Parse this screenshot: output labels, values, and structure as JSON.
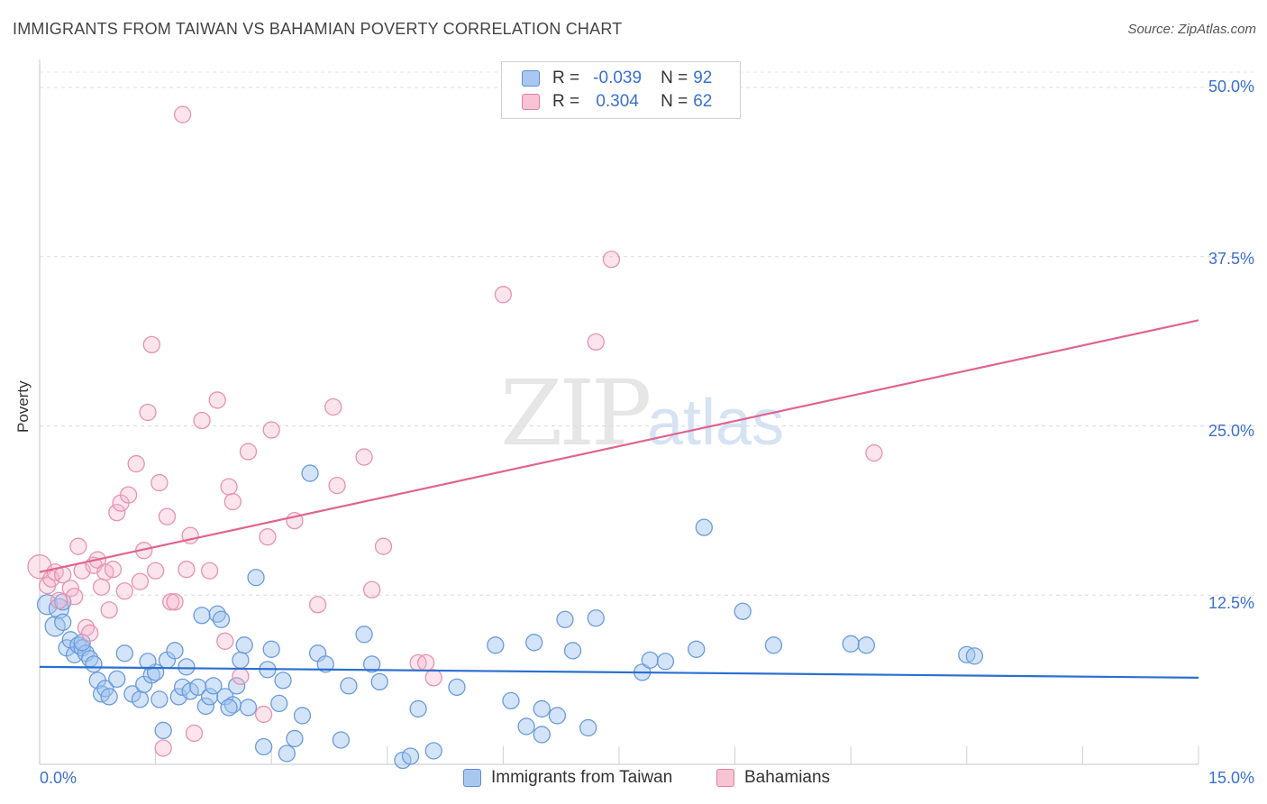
{
  "title": "IMMIGRANTS FROM TAIWAN VS BAHAMIAN POVERTY CORRELATION CHART",
  "source": "Source: ZipAtlas.com",
  "watermark": {
    "zip": "ZIP",
    "atlas": "atlas"
  },
  "legend": {
    "r_label": "R =",
    "n_label": "N =",
    "rows": [
      {
        "r": "-0.039",
        "n": "92",
        "color": "#a9c8f0",
        "border": "#5a8fd8"
      },
      {
        "r": "0.304",
        "n": "62",
        "color": "#f8c4d4",
        "border": "#e07ea0"
      }
    ]
  },
  "bottom_legend": [
    {
      "label": "Immigrants from Taiwan",
      "color": "#a9c8f0",
      "border": "#5a8fd8"
    },
    {
      "label": "Bahamians",
      "color": "#f8c4d4",
      "border": "#e07ea0"
    }
  ],
  "axes": {
    "ylabel": "Poverty",
    "x_min_label": "0.0%",
    "x_max_label": "15.0%",
    "y_ticks": [
      "50.0%",
      "37.5%",
      "25.0%",
      "12.5%"
    ]
  },
  "chart_data": {
    "type": "scatter",
    "xlabel": "",
    "ylabel": "Poverty",
    "xlim": [
      0,
      15
    ],
    "ylim": [
      0,
      50
    ],
    "grid": true,
    "series": [
      {
        "name": "Immigrants from Taiwan",
        "color": "#6fa0e0",
        "trend": {
          "x": [
            0,
            15
          ],
          "y": [
            7.2,
            6.4
          ],
          "color": "#2b6fd0"
        },
        "points": [
          [
            0.1,
            11.8
          ],
          [
            0.2,
            10.2
          ],
          [
            0.25,
            11.5
          ],
          [
            0.3,
            12
          ],
          [
            0.35,
            8.6
          ],
          [
            0.4,
            9.2
          ],
          [
            0.45,
            8.1
          ],
          [
            0.5,
            8.8
          ],
          [
            0.55,
            8.6
          ],
          [
            0.6,
            8.2
          ],
          [
            0.65,
            7.8
          ],
          [
            0.7,
            7.4
          ],
          [
            0.75,
            6.2
          ],
          [
            0.8,
            5.2
          ],
          [
            0.85,
            5.6
          ],
          [
            0.9,
            5
          ],
          [
            1.1,
            8.2
          ],
          [
            1.2,
            5.2
          ],
          [
            1.3,
            4.8
          ],
          [
            1.35,
            5.9
          ],
          [
            1.45,
            6.6
          ],
          [
            1.5,
            6.8
          ],
          [
            1.55,
            4.8
          ],
          [
            1.6,
            2.5
          ],
          [
            1.65,
            7.7
          ],
          [
            1.75,
            8.4
          ],
          [
            1.8,
            5
          ],
          [
            1.85,
            5.7
          ],
          [
            1.9,
            7.2
          ],
          [
            1.95,
            5.4
          ],
          [
            2.05,
            5.7
          ],
          [
            2.1,
            11
          ],
          [
            2.15,
            4.3
          ],
          [
            2.2,
            5
          ],
          [
            2.25,
            5.8
          ],
          [
            2.3,
            11.1
          ],
          [
            2.35,
            10.7
          ],
          [
            2.4,
            5
          ],
          [
            2.5,
            4.4
          ],
          [
            2.55,
            5.8
          ],
          [
            2.6,
            7.7
          ],
          [
            2.65,
            8.8
          ],
          [
            2.7,
            4.2
          ],
          [
            2.8,
            13.8
          ],
          [
            2.9,
            1.3
          ],
          [
            2.95,
            7
          ],
          [
            3.0,
            8.5
          ],
          [
            3.1,
            4.5
          ],
          [
            3.15,
            6.2
          ],
          [
            3.2,
            0.8
          ],
          [
            3.3,
            1.9
          ],
          [
            3.4,
            3.6
          ],
          [
            3.5,
            21.5
          ],
          [
            3.6,
            8.2
          ],
          [
            3.7,
            7.4
          ],
          [
            3.9,
            1.8
          ],
          [
            4.0,
            5.8
          ],
          [
            4.2,
            9.6
          ],
          [
            4.3,
            7.4
          ],
          [
            4.4,
            6.1
          ],
          [
            4.7,
            0.3
          ],
          [
            4.8,
            0.6
          ],
          [
            4.9,
            4.1
          ],
          [
            5.1,
            1.0
          ],
          [
            5.4,
            5.7
          ],
          [
            5.9,
            8.8
          ],
          [
            6.1,
            4.7
          ],
          [
            6.3,
            2.8
          ],
          [
            6.4,
            9.0
          ],
          [
            6.5,
            2.2
          ],
          [
            6.5,
            4.1
          ],
          [
            6.7,
            3.6
          ],
          [
            6.8,
            10.7
          ],
          [
            6.9,
            8.4
          ],
          [
            7.1,
            2.7
          ],
          [
            7.2,
            10.8
          ],
          [
            7.8,
            6.8
          ],
          [
            7.9,
            7.7
          ],
          [
            8.1,
            7.6
          ],
          [
            8.5,
            8.5
          ],
          [
            8.6,
            17.5
          ],
          [
            9.1,
            11.3
          ],
          [
            9.5,
            8.8
          ],
          [
            10.5,
            8.9
          ],
          [
            10.7,
            8.8
          ],
          [
            12.0,
            8.1
          ],
          [
            12.1,
            8.0
          ],
          [
            0.3,
            10.5
          ],
          [
            0.55,
            9.0
          ],
          [
            1.0,
            6.3
          ],
          [
            1.4,
            7.6
          ],
          [
            2.45,
            4.2
          ]
        ]
      },
      {
        "name": "Bahamians",
        "color": "#f4a8c0",
        "trend": {
          "x": [
            0,
            15
          ],
          "y": [
            14.2,
            32.8
          ],
          "color": "#e0648f"
        },
        "points": [
          [
            0.0,
            14.6
          ],
          [
            0.1,
            13.2
          ],
          [
            0.15,
            13.7
          ],
          [
            0.2,
            14.2
          ],
          [
            0.25,
            12.1
          ],
          [
            0.3,
            14.0
          ],
          [
            0.4,
            13.0
          ],
          [
            0.45,
            12.4
          ],
          [
            0.5,
            16.1
          ],
          [
            0.55,
            14.3
          ],
          [
            0.6,
            10.1
          ],
          [
            0.65,
            9.7
          ],
          [
            0.7,
            14.7
          ],
          [
            0.75,
            15.1
          ],
          [
            0.8,
            13.1
          ],
          [
            0.85,
            14.2
          ],
          [
            0.9,
            11.4
          ],
          [
            0.95,
            14.4
          ],
          [
            1.0,
            18.6
          ],
          [
            1.05,
            19.3
          ],
          [
            1.1,
            12.8
          ],
          [
            1.15,
            19.9
          ],
          [
            1.25,
            22.2
          ],
          [
            1.3,
            13.5
          ],
          [
            1.35,
            15.8
          ],
          [
            1.4,
            26.0
          ],
          [
            1.45,
            31.0
          ],
          [
            1.5,
            14.3
          ],
          [
            1.55,
            20.8
          ],
          [
            1.6,
            1.2
          ],
          [
            1.65,
            18.3
          ],
          [
            1.7,
            12.0
          ],
          [
            1.75,
            12.0
          ],
          [
            1.85,
            48.0
          ],
          [
            1.9,
            14.4
          ],
          [
            1.95,
            16.9
          ],
          [
            2.0,
            2.3
          ],
          [
            2.1,
            25.4
          ],
          [
            2.2,
            14.3
          ],
          [
            2.3,
            26.9
          ],
          [
            2.4,
            9.1
          ],
          [
            2.45,
            20.5
          ],
          [
            2.5,
            19.4
          ],
          [
            2.6,
            6.5
          ],
          [
            2.7,
            23.1
          ],
          [
            2.9,
            3.7
          ],
          [
            2.95,
            16.8
          ],
          [
            3.0,
            24.7
          ],
          [
            3.3,
            18.0
          ],
          [
            3.6,
            11.8
          ],
          [
            3.8,
            26.4
          ],
          [
            3.85,
            20.6
          ],
          [
            4.2,
            22.7
          ],
          [
            4.3,
            12.9
          ],
          [
            4.45,
            16.1
          ],
          [
            4.9,
            7.5
          ],
          [
            5.0,
            7.5
          ],
          [
            5.1,
            6.4
          ],
          [
            6.0,
            34.7
          ],
          [
            7.2,
            31.2
          ],
          [
            7.4,
            37.3
          ],
          [
            10.8,
            23.0
          ]
        ]
      }
    ]
  }
}
